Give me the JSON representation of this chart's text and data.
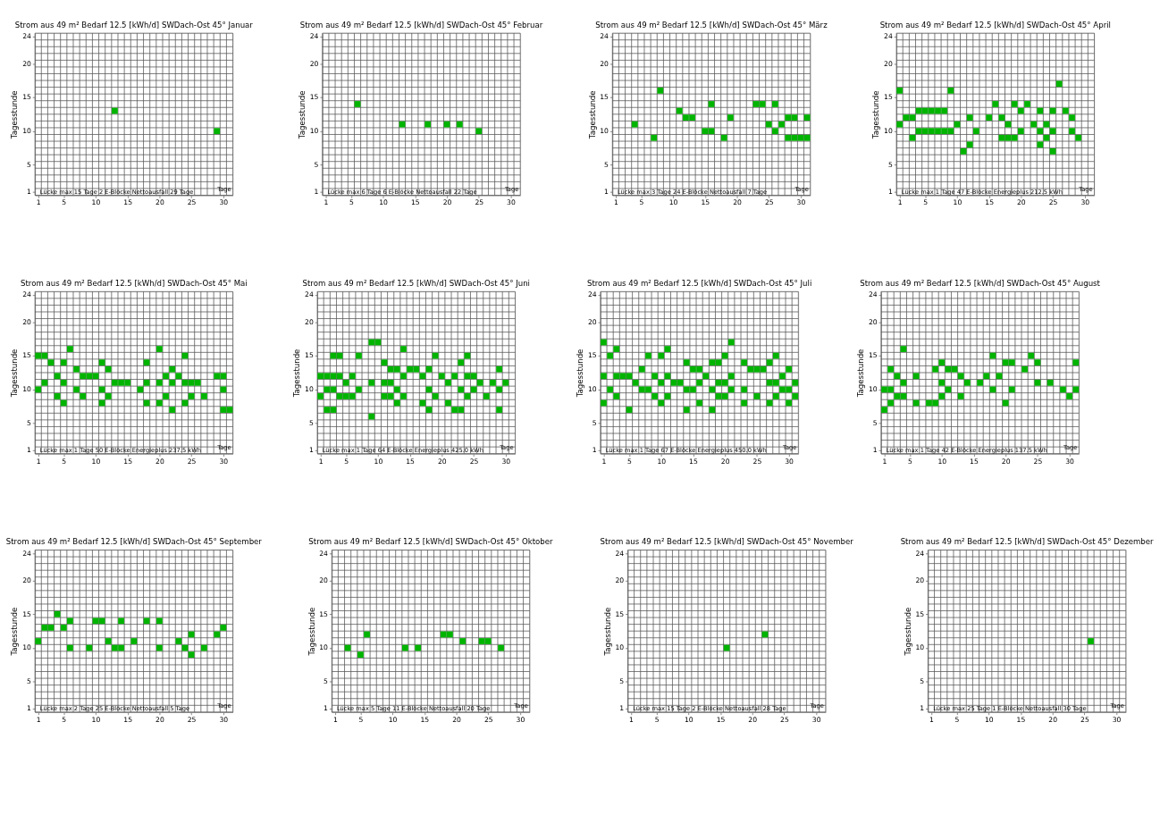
{
  "chart_data": [
    {
      "type": "scatter",
      "title": "Strom aus 49 m² Bedarf 12.5 [kWh/d] SWDach-Ost 45°  Januar",
      "ylabel": "Tagesstunde",
      "xlabel": "Tage",
      "annotations": [
        "Lücke max 15 Tage  2 E-Blöcke  Nettoausfall 29 Tage"
      ],
      "color": "#00b400",
      "marker": "square",
      "grid": true,
      "xlim": [
        0.5,
        31.5
      ],
      "ylim": [
        0.5,
        24.5
      ],
      "xticks": [
        1,
        5,
        10,
        15,
        20,
        25,
        30
      ],
      "yticks": [
        1,
        5,
        10,
        15,
        20,
        24
      ],
      "x": [
        13,
        29
      ],
      "values": [
        13,
        10
      ]
    },
    {
      "type": "scatter",
      "title": "Strom aus 49 m² Bedarf 12.5 [kWh/d] SWDach-Ost 45°  Februar",
      "ylabel": "Tagesstunde",
      "xlabel": "Tage",
      "annotations": [
        "Lücke max 6 Tage  6 E-Blöcke  Nettoausfall 22 Tage"
      ],
      "color": "#00b400",
      "marker": "square",
      "grid": true,
      "xlim": [
        0.5,
        31.5
      ],
      "ylim": [
        0.5,
        24.5
      ],
      "xticks": [
        1,
        5,
        10,
        15,
        20,
        25,
        30
      ],
      "yticks": [
        1,
        5,
        10,
        15,
        20,
        24
      ],
      "x": [
        6,
        13,
        17,
        20,
        22,
        25
      ],
      "values": [
        14,
        11,
        11,
        11,
        11,
        10
      ]
    },
    {
      "type": "scatter",
      "title": "Strom aus 49 m² Bedarf 12.5 [kWh/d] SWDach-Ost 45°  März",
      "ylabel": "Tagesstunde",
      "xlabel": "Tage",
      "annotations": [
        "Lücke max 3 Tage  24 E-Blöcke  Nettoausfall 7 Tage"
      ],
      "color": "#00b400",
      "marker": "square",
      "grid": true,
      "xlim": [
        0.5,
        31.5
      ],
      "ylim": [
        0.5,
        24.5
      ],
      "xticks": [
        1,
        5,
        10,
        15,
        20,
        25,
        30
      ],
      "yticks": [
        1,
        5,
        10,
        15,
        20,
        24
      ],
      "x": [
        8,
        4,
        7,
        11,
        12,
        13,
        15,
        16,
        16,
        18,
        19,
        23,
        24,
        26,
        25,
        26,
        27,
        28,
        29,
        31,
        28,
        29,
        30,
        31
      ],
      "values": [
        16,
        11,
        9,
        13,
        12,
        12,
        10,
        10,
        14,
        9,
        12,
        14,
        14,
        14,
        11,
        10,
        11,
        12,
        12,
        12,
        9,
        9,
        9,
        9
      ]
    },
    {
      "type": "scatter",
      "title": "Strom aus 49 m² Bedarf 12.5 [kWh/d] SWDach-Ost 45°  April",
      "ylabel": "Tagesstunde",
      "xlabel": "Tage",
      "annotations": [
        "Lücke max 1 Tage  47 E-Blöcke  Energieplus  212.5 kWh"
      ],
      "color": "#00b400",
      "marker": "square",
      "grid": true,
      "xlim": [
        0.5,
        31.5
      ],
      "ylim": [
        0.5,
        24.5
      ],
      "xticks": [
        1,
        5,
        10,
        15,
        20,
        25,
        30
      ],
      "yticks": [
        1,
        5,
        10,
        15,
        20,
        24
      ],
      "x": [
        1,
        1,
        2,
        3,
        3,
        4,
        5,
        6,
        7,
        8,
        4,
        5,
        6,
        7,
        8,
        9,
        9,
        10,
        11,
        12,
        12,
        13,
        15,
        16,
        17,
        17,
        18,
        19,
        18,
        19,
        20,
        20,
        21,
        22,
        23,
        23,
        23,
        24,
        24,
        25,
        25,
        25,
        26,
        27,
        28,
        28,
        29
      ],
      "values": [
        16,
        11,
        12,
        12,
        9,
        13,
        13,
        13,
        13,
        13,
        10,
        10,
        10,
        10,
        10,
        10,
        16,
        11,
        7,
        8,
        12,
        10,
        12,
        14,
        12,
        9,
        9,
        9,
        11,
        14,
        13,
        10,
        14,
        11,
        13,
        10,
        8,
        11,
        9,
        13,
        10,
        7,
        17,
        13,
        12,
        10,
        9
      ]
    },
    {
      "type": "scatter",
      "title": "Strom aus 49 m² Bedarf 12.5 [kWh/d] SWDach-Ost 45°  Mai",
      "ylabel": "Tagesstunde",
      "xlabel": "Tage",
      "annotations": [
        "Lücke max 1 Tage  50 E-Blöcke  Energieplus  237.5 kWh"
      ],
      "color": "#00b400",
      "marker": "square",
      "grid": true,
      "xlim": [
        0.5,
        31.5
      ],
      "ylim": [
        0.5,
        24.5
      ],
      "xticks": [
        1,
        5,
        10,
        15,
        20,
        25,
        30
      ],
      "yticks": [
        1,
        5,
        10,
        15,
        20,
        24
      ],
      "x": [
        1,
        2,
        1,
        2,
        3,
        4,
        4,
        5,
        5,
        5,
        6,
        7,
        7,
        8,
        9,
        10,
        8,
        11,
        11,
        11,
        12,
        12,
        13,
        14,
        15,
        17,
        18,
        18,
        18,
        20,
        20,
        20,
        21,
        21,
        22,
        22,
        22,
        23,
        24,
        24,
        24,
        25,
        26,
        25,
        27,
        29,
        30,
        30,
        30,
        31
      ],
      "values": [
        15,
        15,
        10,
        11,
        14,
        12,
        9,
        14,
        11,
        8,
        16,
        13,
        10,
        12,
        12,
        12,
        9,
        14,
        10,
        8,
        13,
        9,
        11,
        11,
        11,
        10,
        14,
        11,
        8,
        16,
        11,
        8,
        12,
        9,
        13,
        11,
        7,
        12,
        15,
        11,
        8,
        11,
        11,
        9,
        9,
        12,
        12,
        10,
        7,
        7
      ]
    },
    {
      "type": "scatter",
      "title": "Strom aus 49 m² Bedarf 12.5 [kWh/d]  SWDach-Ost 45°  Juni",
      "ylabel": "Tagesstunde",
      "xlabel": "Tage",
      "annotations": [
        "Lücke max 1 Tage  64 E-Blöcke  Energieplus  425.0 kWh"
      ],
      "color": "#00b400",
      "marker": "square",
      "grid": true,
      "xlim": [
        0.5,
        31.5
      ],
      "ylim": [
        0.5,
        24.5
      ],
      "xticks": [
        1,
        5,
        10,
        15,
        20,
        25,
        30
      ],
      "yticks": [
        1,
        5,
        10,
        15,
        20,
        24
      ],
      "x": [
        9,
        10,
        14,
        3,
        4,
        7,
        19,
        24,
        11,
        23,
        12,
        13,
        15,
        16,
        18,
        29,
        1,
        2,
        3,
        4,
        6,
        14,
        17,
        20,
        22,
        24,
        25,
        5,
        9,
        11,
        12,
        21,
        26,
        28,
        30,
        2,
        3,
        7,
        13,
        18,
        23,
        25,
        29,
        1,
        4,
        5,
        6,
        11,
        12,
        14,
        19,
        24,
        27,
        13,
        17,
        21,
        2,
        3,
        18,
        22,
        23,
        29,
        9
      ],
      "values": [
        17,
        17,
        16,
        15,
        15,
        15,
        15,
        15,
        14,
        14,
        13,
        13,
        13,
        13,
        13,
        13,
        12,
        12,
        12,
        12,
        12,
        12,
        12,
        12,
        12,
        12,
        12,
        11,
        11,
        11,
        11,
        11,
        11,
        11,
        11,
        10,
        10,
        10,
        10,
        10,
        10,
        10,
        10,
        9,
        9,
        9,
        9,
        9,
        9,
        9,
        9,
        9,
        9,
        8,
        8,
        8,
        7,
        7,
        7,
        7,
        7,
        7,
        6
      ]
    },
    {
      "type": "scatter",
      "title": "Strom aus 49 m² Bedarf 12.5 [kWh/d] SWDach-Ost 45°  Juli",
      "ylabel": "Tagesstunde",
      "xlabel": "Tage",
      "annotations": [
        "Lücke max 1 Tage  67 E-Blöcke  Energieplus  450.0 kWh"
      ],
      "color": "#00b400",
      "marker": "square",
      "grid": true,
      "xlim": [
        0.5,
        31.5
      ],
      "ylim": [
        0.5,
        24.5
      ],
      "xticks": [
        1,
        5,
        10,
        15,
        20,
        25,
        30
      ],
      "yticks": [
        1,
        5,
        10,
        15,
        20,
        24
      ],
      "x": [
        1,
        21,
        3,
        11,
        2,
        8,
        10,
        20,
        28,
        14,
        18,
        19,
        23,
        27,
        7,
        15,
        16,
        24,
        25,
        26,
        30,
        1,
        3,
        4,
        5,
        9,
        11,
        17,
        21,
        29,
        6,
        10,
        12,
        13,
        16,
        19,
        20,
        27,
        28,
        31,
        2,
        7,
        8,
        14,
        15,
        18,
        21,
        23,
        29,
        30,
        3,
        9,
        11,
        19,
        20,
        25,
        28,
        31,
        1,
        10,
        16,
        23,
        27,
        30,
        5,
        14,
        18
      ],
      "values": [
        17,
        17,
        16,
        16,
        15,
        15,
        15,
        15,
        15,
        14,
        14,
        14,
        14,
        14,
        13,
        13,
        13,
        13,
        13,
        13,
        13,
        12,
        12,
        12,
        12,
        12,
        12,
        12,
        12,
        12,
        11,
        11,
        11,
        11,
        11,
        11,
        11,
        11,
        11,
        11,
        10,
        10,
        10,
        10,
        10,
        10,
        10,
        10,
        10,
        10,
        9,
        9,
        9,
        9,
        9,
        9,
        9,
        9,
        8,
        8,
        8,
        8,
        8,
        8,
        7,
        7,
        7
      ]
    },
    {
      "type": "scatter",
      "title": "Strom aus 49 m² Bedarf 12.5 [kWh/d] SWDach-Ost 45°  August",
      "ylabel": "Tagesstunde",
      "xlabel": "Tage",
      "annotations": [
        "Lücke max 1 Tage  42 E-Blöcke  Energieplus  137.5 kWh"
      ],
      "color": "#00b400",
      "marker": "square",
      "grid": true,
      "xlim": [
        0.5,
        31.5
      ],
      "ylim": [
        0.5,
        24.5
      ],
      "xticks": [
        1,
        5,
        10,
        15,
        20,
        25,
        30
      ],
      "yticks": [
        1,
        5,
        10,
        15,
        20,
        24
      ],
      "x": [
        4,
        18,
        24,
        10,
        20,
        21,
        25,
        31,
        2,
        9,
        11,
        12,
        23,
        3,
        6,
        13,
        17,
        19,
        4,
        10,
        14,
        16,
        25,
        27,
        1,
        2,
        11,
        18,
        21,
        29,
        31,
        3,
        4,
        10,
        13,
        30,
        2,
        6,
        8,
        9,
        20,
        1
      ],
      "values": [
        16,
        15,
        15,
        14,
        14,
        14,
        14,
        14,
        13,
        13,
        13,
        13,
        13,
        12,
        12,
        12,
        12,
        12,
        11,
        11,
        11,
        11,
        11,
        11,
        10,
        10,
        10,
        10,
        10,
        10,
        10,
        9,
        9,
        9,
        9,
        9,
        8,
        8,
        8,
        8,
        8,
        7
      ]
    },
    {
      "type": "scatter",
      "title": "Strom aus 49 m² Bedarf 12.5 [kWh/d] SWDach-Ost 45°  September",
      "ylabel": "Tagesstunde",
      "xlabel": "Tage",
      "annotations": [
        "Lücke max 2 Tage  25 E-Blöcke  Nettoausfall 5 Tage"
      ],
      "color": "#00b400",
      "marker": "square",
      "grid": true,
      "xlim": [
        0.5,
        31.5
      ],
      "ylim": [
        0.5,
        24.5
      ],
      "xticks": [
        1,
        5,
        10,
        15,
        20,
        25,
        30
      ],
      "yticks": [
        1,
        5,
        10,
        15,
        20,
        24
      ],
      "x": [
        4,
        6,
        10,
        11,
        14,
        18,
        20,
        2,
        3,
        5,
        30,
        25,
        29,
        1,
        12,
        16,
        23,
        6,
        9,
        13,
        14,
        20,
        24,
        27,
        25
      ],
      "values": [
        15,
        14,
        14,
        14,
        14,
        14,
        14,
        13,
        13,
        13,
        13,
        12,
        12,
        11,
        11,
        11,
        11,
        10,
        10,
        10,
        10,
        10,
        10,
        10,
        9
      ]
    },
    {
      "type": "scatter",
      "title": "Strom aus 49 m² Bedarf 12.5 [kWh/d] SWDach-Ost 45°  Oktober",
      "ylabel": "Tagesstunde",
      "xlabel": "Tage",
      "annotations": [
        "Lücke max 5 Tage  11 E-Blöcke  Nettoausfall 20 Tage"
      ],
      "color": "#00b400",
      "marker": "square",
      "grid": true,
      "xlim": [
        0.5,
        31.5
      ],
      "ylim": [
        0.5,
        24.5
      ],
      "xticks": [
        1,
        5,
        10,
        15,
        20,
        25,
        30
      ],
      "yticks": [
        1,
        5,
        10,
        15,
        20,
        24
      ],
      "x": [
        6,
        18,
        19,
        21,
        24,
        25,
        3,
        12,
        14,
        27,
        5
      ],
      "values": [
        12,
        12,
        12,
        11,
        11,
        11,
        10,
        10,
        10,
        10,
        9
      ]
    },
    {
      "type": "scatter",
      "title": "Strom aus 49 m² Bedarf 12.5 [kWh/d] SWDach-Ost 45°  November",
      "ylabel": "Tagesstunde",
      "xlabel": "Tage",
      "annotations": [
        "Lücke max 15 Tage  2 E-Blöcke  Nettoausfall 28 Tage"
      ],
      "color": "#00b400",
      "marker": "square",
      "grid": true,
      "xlim": [
        0.5,
        31.5
      ],
      "ylim": [
        0.5,
        24.5
      ],
      "xticks": [
        1,
        5,
        10,
        15,
        20,
        25,
        30
      ],
      "yticks": [
        1,
        5,
        10,
        15,
        20,
        24
      ],
      "x": [
        16,
        22
      ],
      "values": [
        10,
        12
      ]
    },
    {
      "type": "scatter",
      "title": "Strom aus 49 m² Bedarf 12.5 [kWh/d] SWDach-Ost 45°  Dezember",
      "ylabel": "Tagesstunde",
      "xlabel": "Tage",
      "annotations": [
        "Lücke max 25 Tage  1 E-Blöcke  Nettoausfall 30 Tage"
      ],
      "color": "#00b400",
      "marker": "square",
      "grid": true,
      "xlim": [
        0.5,
        31.5
      ],
      "ylim": [
        0.5,
        24.5
      ],
      "xticks": [
        1,
        5,
        10,
        15,
        20,
        25,
        30
      ],
      "yticks": [
        1,
        5,
        10,
        15,
        20,
        24
      ],
      "x": [
        26
      ],
      "values": [
        11
      ]
    }
  ]
}
